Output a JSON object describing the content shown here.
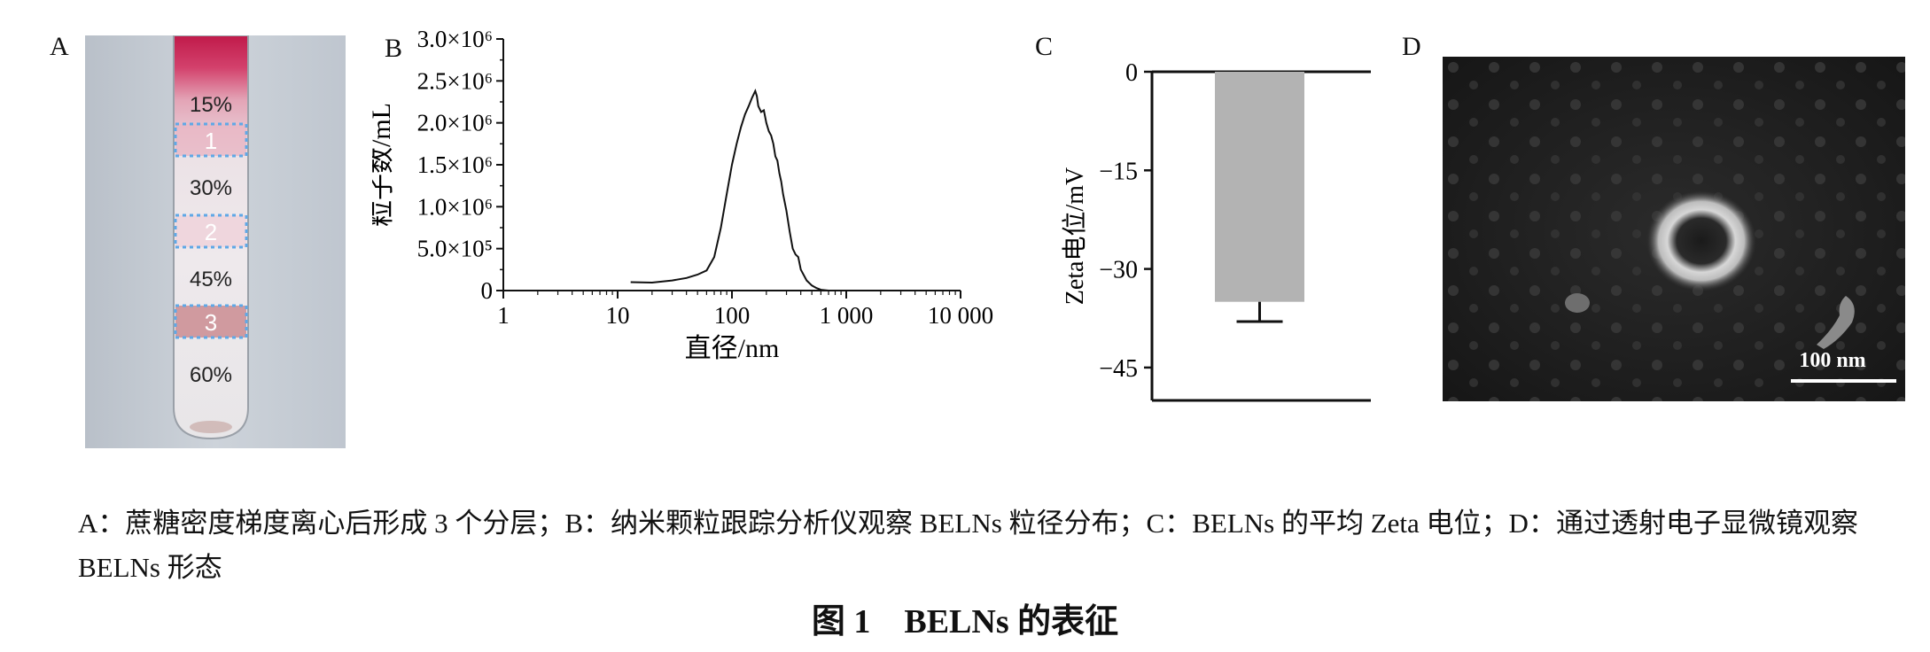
{
  "panels": {
    "a": {
      "letter": "A",
      "gradient_labels": [
        "15%",
        "30%",
        "45%",
        "60%"
      ],
      "band_labels": [
        "1",
        "2",
        "3"
      ]
    },
    "b": {
      "letter": "B"
    },
    "c": {
      "letter": "C"
    },
    "d": {
      "letter": "D",
      "scale_bar_label": "100 nm"
    }
  },
  "chart_data": [
    {
      "panel": "B",
      "type": "line",
      "xlabel": "直径/nm",
      "ylabel": "粒子数/mL",
      "xscale": "log",
      "xlim": [
        1,
        10000
      ],
      "ylim": [
        0,
        3000000
      ],
      "x_ticks": [
        "1",
        "10",
        "100",
        "1 000",
        "10 000"
      ],
      "y_ticks": [
        "0",
        "5.0×10⁵",
        "1.0×10⁶",
        "1.5×10⁶",
        "2.0×10⁶",
        "2.5×10⁶",
        "3.0×10⁶"
      ],
      "series": [
        {
          "x": [
            13,
            20,
            30,
            40,
            50,
            60,
            70,
            80,
            90,
            100,
            110,
            120,
            130,
            140,
            150,
            160,
            165,
            170,
            180,
            190,
            200,
            210,
            220,
            230,
            240,
            250,
            260,
            270,
            280,
            300,
            320,
            340,
            360,
            380,
            400,
            450,
            500,
            550,
            600,
            700
          ],
          "y": [
            100000,
            95000,
            120000,
            150000,
            190000,
            240000,
            400000,
            750000,
            1150000,
            1500000,
            1750000,
            1950000,
            2100000,
            2200000,
            2300000,
            2380000,
            2320000,
            2200000,
            2130000,
            2150000,
            2000000,
            1900000,
            1850000,
            1750000,
            1600000,
            1550000,
            1400000,
            1300000,
            1150000,
            950000,
            700000,
            500000,
            430000,
            400000,
            250000,
            120000,
            60000,
            30000,
            10000,
            0
          ]
        }
      ]
    },
    {
      "panel": "C",
      "type": "bar",
      "ylabel": "Zeta电位/mV",
      "ylim": [
        -50,
        0
      ],
      "y_ticks": [
        "0",
        "−15",
        "−30",
        "−45"
      ],
      "categories": [
        ""
      ],
      "values": [
        -35
      ],
      "error": [
        3
      ],
      "bar_color": "#b3b3b3"
    }
  ],
  "caption": "A：蔗糖密度梯度离心后形成 3 个分层；B：纳米颗粒跟踪分析仪观察 BELNs 粒径分布；C：BELNs 的平均 Zeta 电位；D：通过透射电子显微镜观察 BELNs 形态",
  "figure_title": "图 1　BELNs 的表征"
}
